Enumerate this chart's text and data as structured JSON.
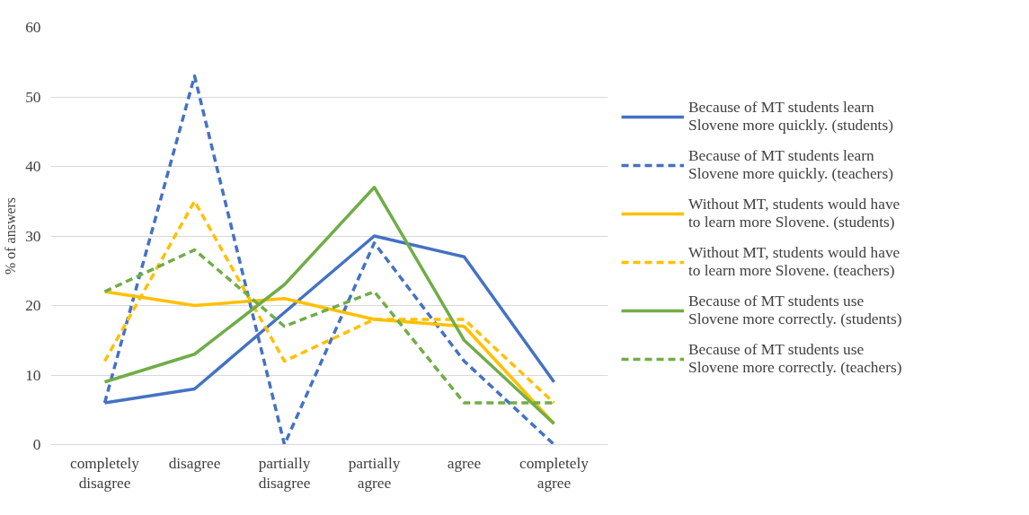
{
  "chart_data": {
    "type": "line",
    "ylabel": "% of answers",
    "categories": [
      "completely disagree",
      "disagree",
      "partially disagree",
      "partially agree",
      "agree",
      "completely agree"
    ],
    "ylim": [
      0,
      60
    ],
    "yticks": [
      0,
      10,
      20,
      30,
      40,
      50,
      60
    ],
    "grid": "y",
    "legend": "right",
    "marker": "none",
    "series": [
      {
        "name": "Because of MT students learn Slovene more quickly. (students)",
        "color": "#4472c4",
        "line_style": "solid",
        "values": [
          6,
          8,
          19,
          30,
          27,
          9
        ]
      },
      {
        "name": "Because of MT students learn Slovene more quickly. (teachers)",
        "color": "#4472c4",
        "line_style": "dashed",
        "values": [
          6,
          53,
          0,
          29,
          12,
          0
        ]
      },
      {
        "name": "Without MT, students would have to learn more Slovene. (students)",
        "color": "#ffc000",
        "line_style": "solid",
        "values": [
          22,
          20,
          21,
          18,
          17,
          3
        ]
      },
      {
        "name": "Without MT, students would have to learn more Slovene. (teachers)",
        "color": "#ffc000",
        "line_style": "dashed",
        "values": [
          12,
          35,
          12,
          18,
          18,
          6
        ]
      },
      {
        "name": "Because of MT students use Slovene more correctly. (students)",
        "color": "#70ad47",
        "line_style": "solid",
        "values": [
          9,
          13,
          23,
          37,
          15,
          3
        ]
      },
      {
        "name": "Because of MT students use Slovene more correctly. (teachers)",
        "color": "#70ad47",
        "line_style": "dashed",
        "values": [
          22,
          28,
          17,
          22,
          6,
          6
        ]
      }
    ]
  }
}
